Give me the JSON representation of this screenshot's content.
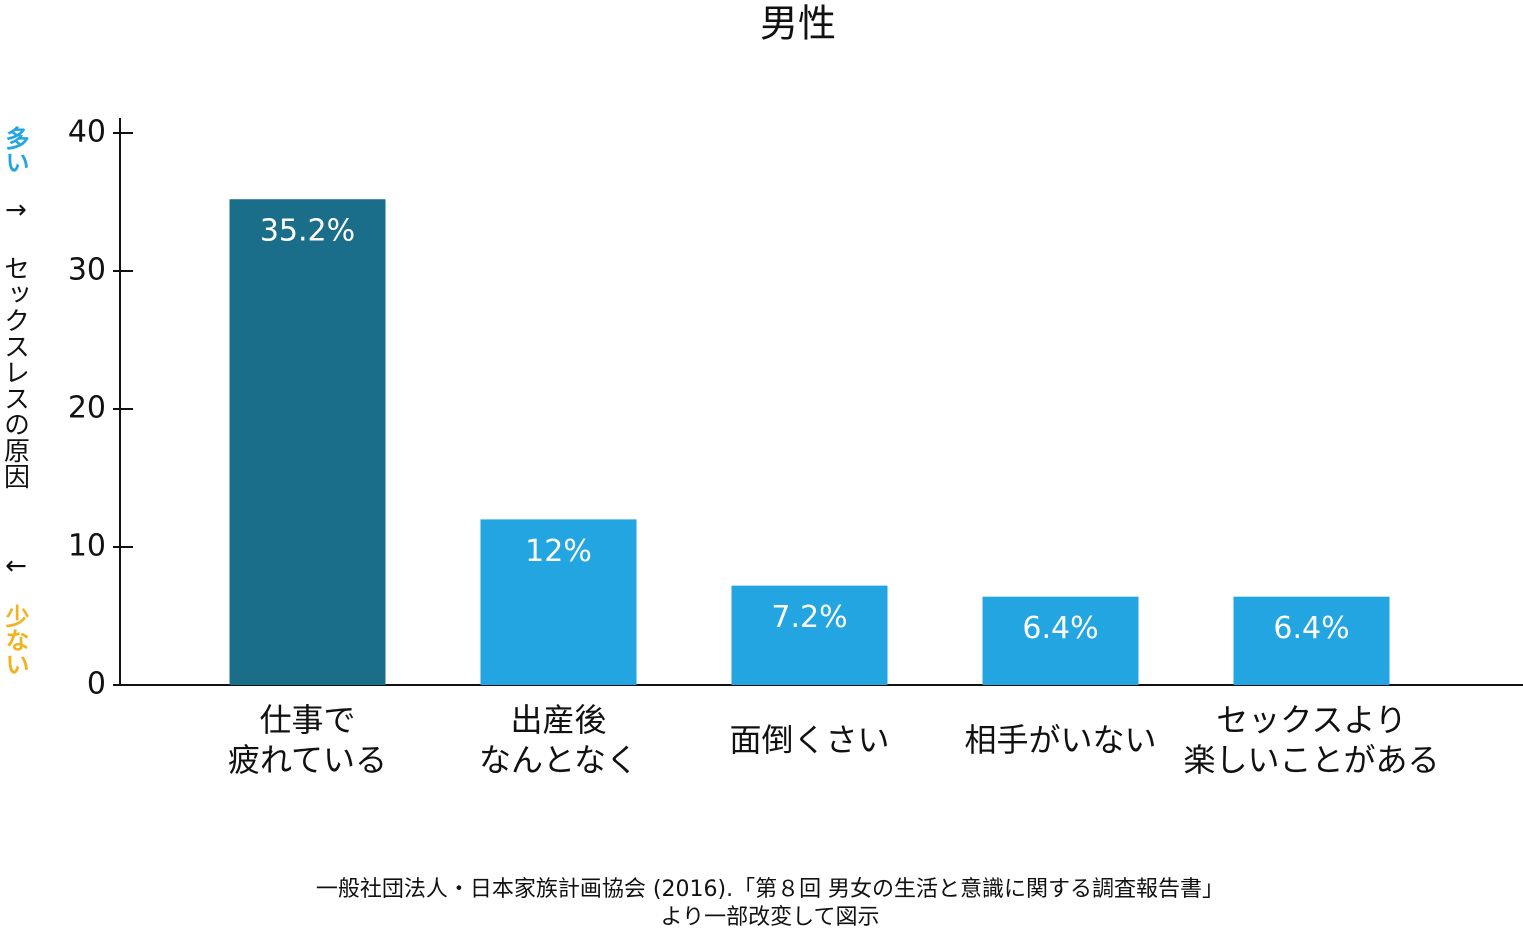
{
  "chart_data": {
    "type": "bar",
    "title": "男性",
    "y_axis_label": [
      "多い",
      "↑",
      "セックスレスの原因",
      "↓",
      "少ない"
    ],
    "y_axis_label_colors": [
      "#22a5e0",
      "#111111",
      "#111111",
      "#111111",
      "#f0b21e"
    ],
    "categories": [
      "仕事で\n疲れている",
      "出産後\nなんとなく",
      "面倒くさい",
      "相手がいない",
      "セックスより\n楽しいことがある"
    ],
    "values": [
      35.2,
      12,
      7.2,
      6.4,
      6.4
    ],
    "value_labels": [
      "35.2%",
      "12%",
      "7.2%",
      "6.4%",
      "6.4%"
    ],
    "colors": [
      "#1a6e8a",
      "#22a5e0",
      "#22a5e0",
      "#22a5e0",
      "#22a5e0"
    ],
    "ylim": [
      0,
      40
    ],
    "yticks": [
      0,
      10,
      20,
      30,
      40
    ],
    "source": [
      "一般社団法人・日本家族計画協会 (2016).「第８回 男女の生活と意識に関する調査報告書」",
      "より一部改変して図示"
    ]
  }
}
